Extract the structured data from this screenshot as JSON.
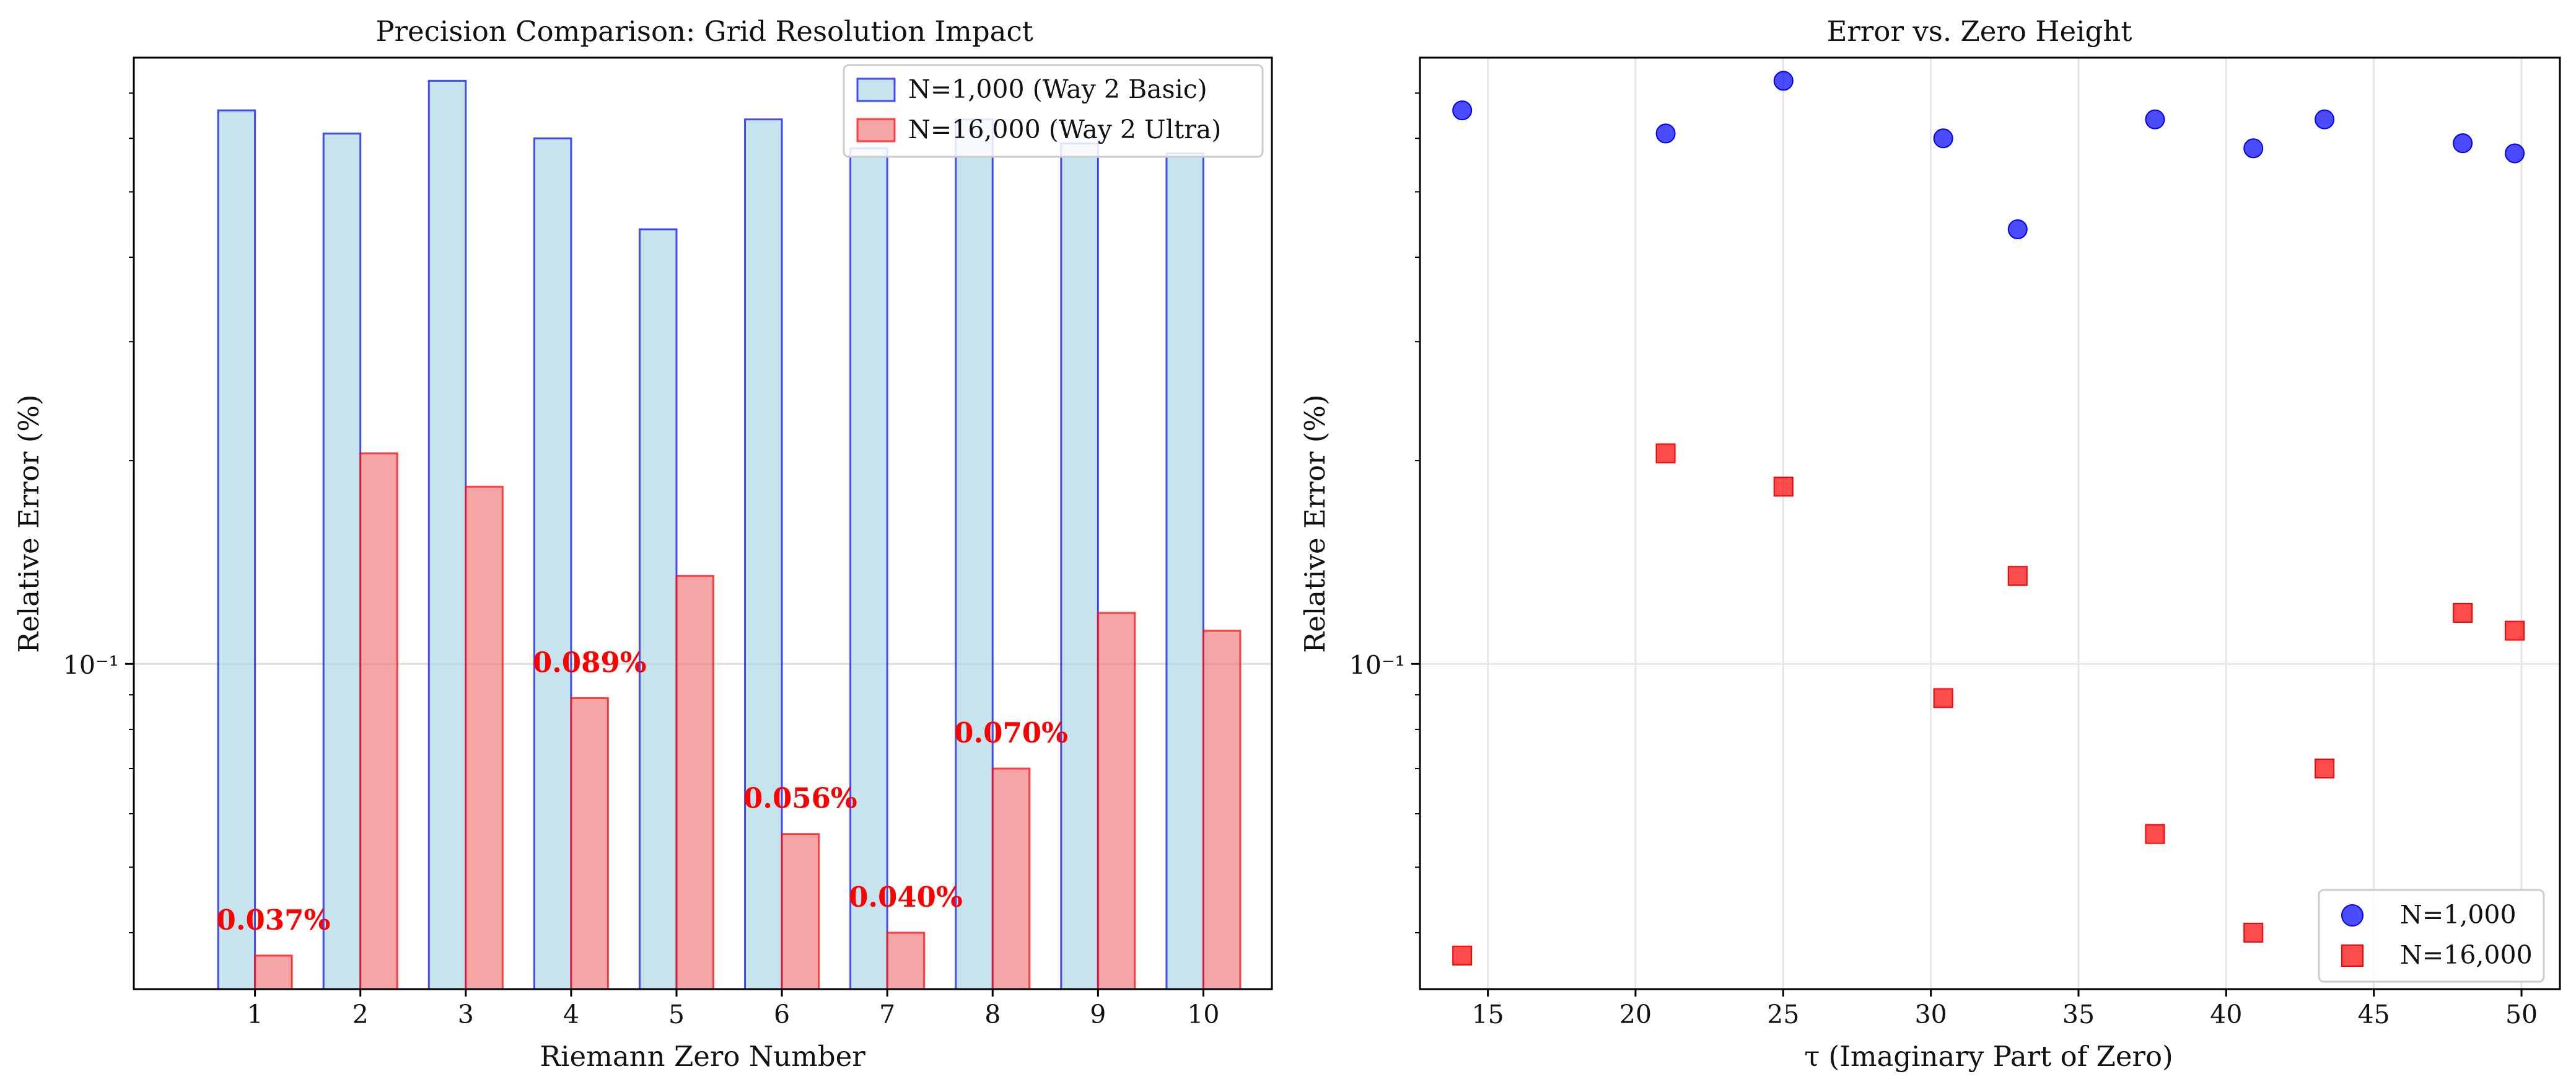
{
  "chart_data": [
    {
      "type": "bar",
      "title": "Precision Comparison: Grid Resolution Impact",
      "xlabel": "Riemann Zero Number",
      "ylabel": "Relative Error (%)",
      "yscale": "log",
      "ylim": [
        0.033,
        0.79
      ],
      "ytick_value": 0.1,
      "ytick_label": "10⁻¹",
      "grid": true,
      "legend_position": "top-right",
      "categories": [
        "1",
        "2",
        "3",
        "4",
        "5",
        "6",
        "7",
        "8",
        "9",
        "10"
      ],
      "series": [
        {
          "name": "N=1,000 (Way 2 Basic)",
          "color": "#add8e6",
          "edge_color": "#0000ff",
          "values": [
            0.66,
            0.61,
            0.73,
            0.6,
            0.44,
            0.64,
            0.58,
            0.64,
            0.59,
            0.57
          ]
        },
        {
          "name": "N=16,000 (Way 2 Ultra)",
          "color": "#f08080",
          "edge_color": "#ff0000",
          "values": [
            0.037,
            0.205,
            0.183,
            0.089,
            0.135,
            0.056,
            0.04,
            0.07,
            0.119,
            0.112
          ]
        }
      ],
      "annotations": [
        {
          "category": "1",
          "text": "0.037%",
          "value": 0.037
        },
        {
          "category": "4",
          "text": "0.089%",
          "value": 0.089
        },
        {
          "category": "6",
          "text": "0.056%",
          "value": 0.056
        },
        {
          "category": "7",
          "text": "0.040%",
          "value": 0.04
        },
        {
          "category": "8",
          "text": "0.070%",
          "value": 0.07
        }
      ]
    },
    {
      "type": "scatter",
      "title": "Error vs. Zero Height",
      "xlabel": "τ (Imaginary Part of Zero)",
      "ylabel": "Relative Error (%)",
      "yscale": "log",
      "xlim": [
        12.7,
        51.3
      ],
      "ylim": [
        0.033,
        0.79
      ],
      "xticks": [
        15,
        20,
        25,
        30,
        35,
        40,
        45,
        50
      ],
      "ytick_value": 0.1,
      "ytick_label": "10⁻¹",
      "grid": true,
      "legend_position": "bottom-right",
      "x": [
        14.13,
        21.02,
        25.01,
        30.42,
        32.94,
        37.59,
        40.92,
        43.33,
        48.01,
        49.77
      ],
      "series": [
        {
          "name": "N=1,000",
          "marker": "circle",
          "color": "#0000ff",
          "values": [
            0.66,
            0.61,
            0.73,
            0.6,
            0.44,
            0.64,
            0.58,
            0.64,
            0.59,
            0.57
          ]
        },
        {
          "name": "N=16,000",
          "marker": "square",
          "color": "#ff0000",
          "values": [
            0.037,
            0.205,
            0.183,
            0.089,
            0.135,
            0.056,
            0.04,
            0.07,
            0.119,
            0.112
          ]
        }
      ]
    }
  ]
}
